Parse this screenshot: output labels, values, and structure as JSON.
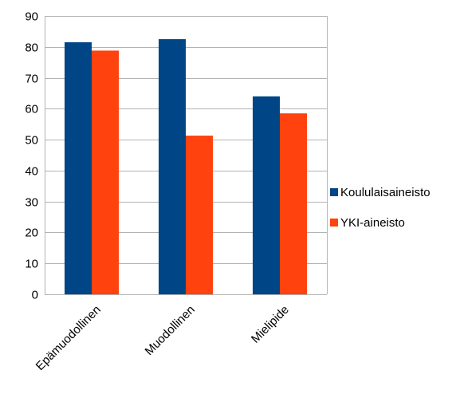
{
  "chart_data": {
    "type": "bar",
    "title": "",
    "xlabel": "",
    "ylabel": "",
    "categories": [
      "Epämuodollinen",
      "Muodollinen",
      "Mielipide"
    ],
    "series": [
      {
        "name": "Koululaisaineisto",
        "values": [
          81.5,
          82.5,
          64
        ],
        "color": "#004586"
      },
      {
        "name": "YKI-aineisto",
        "values": [
          78.8,
          51.3,
          58.5
        ],
        "color": "#FF420E"
      }
    ],
    "ylim": [
      0,
      90
    ],
    "yticks": [
      0,
      10,
      20,
      30,
      40,
      50,
      60,
      70,
      80,
      90
    ],
    "grid": true,
    "legend_position": "right"
  }
}
